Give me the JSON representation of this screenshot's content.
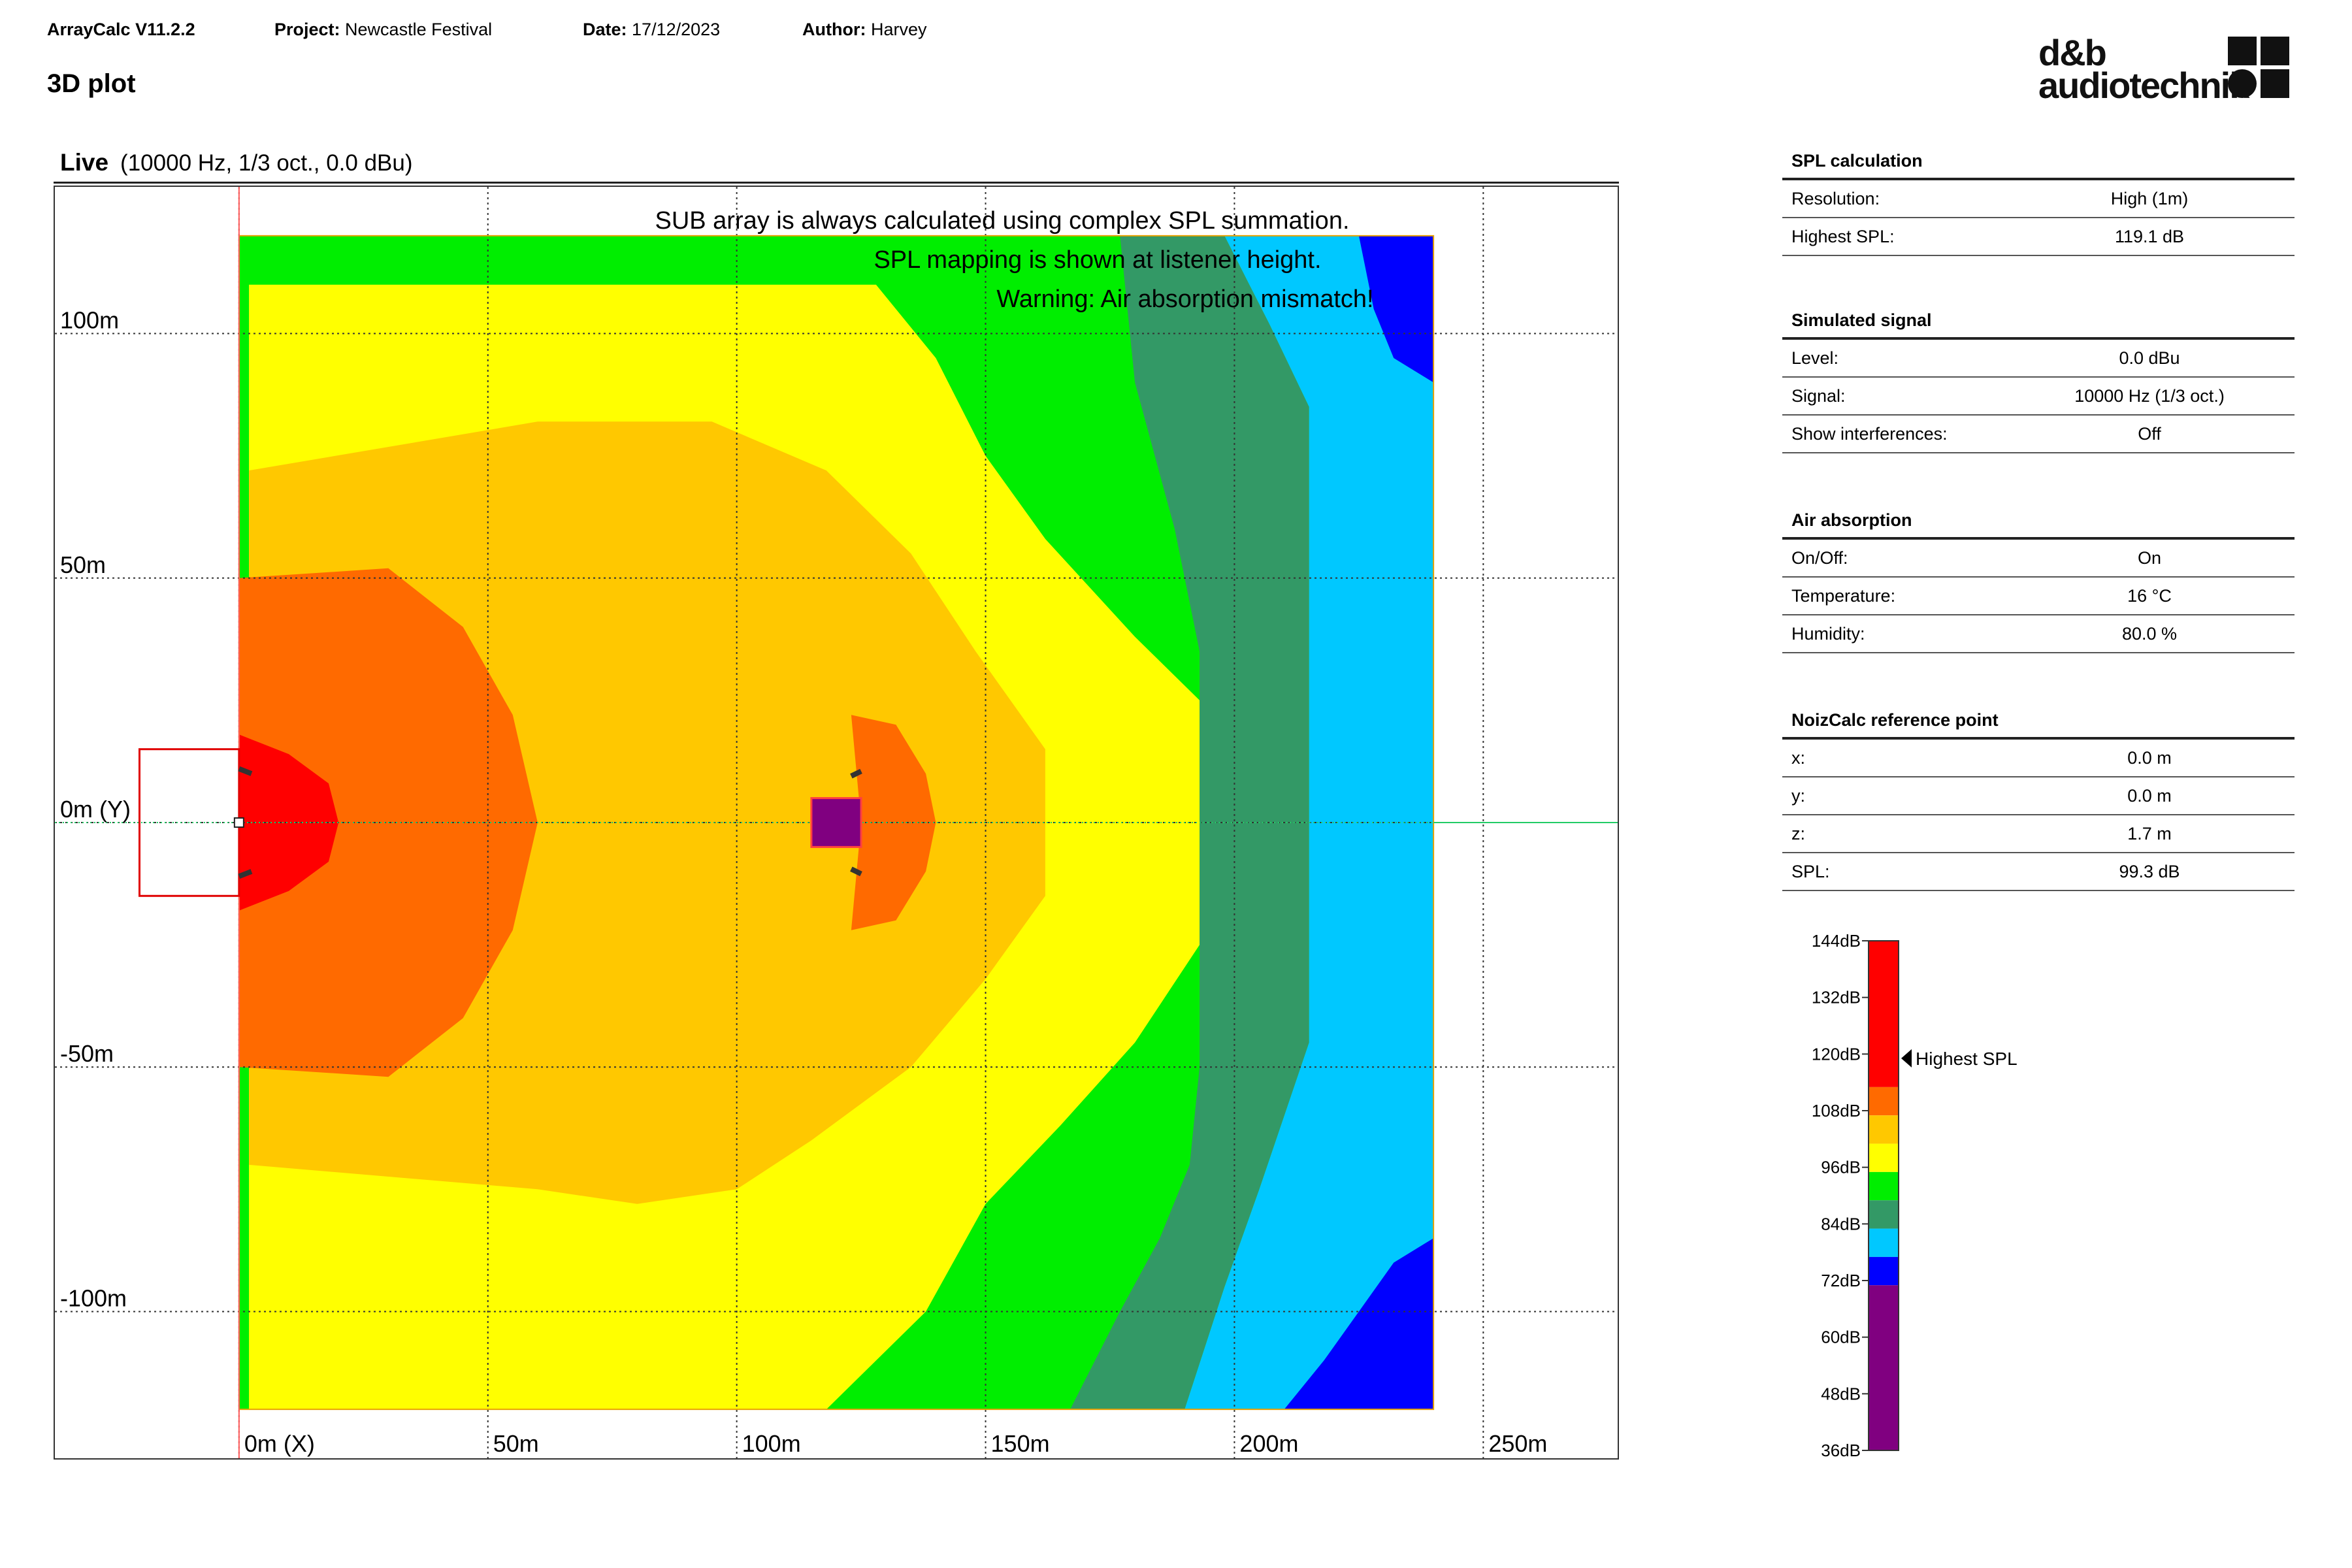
{
  "header": {
    "app": "ArrayCalc V11.2.2",
    "project_label": "Project:",
    "project": "Newcastle Festival",
    "date_label": "Date:",
    "date": "17/12/2023",
    "author_label": "Author:",
    "author": "Harvey"
  },
  "page_title": "3D plot",
  "view": {
    "mode": "Live",
    "params": "(10000 Hz, 1/3 oct., 0.0 dBu)"
  },
  "logo": {
    "line1": "d&b",
    "line2": "audiotechnik"
  },
  "messages": [
    "SUB array is always calculated using complex SPL summation.",
    "SPL mapping is shown at listener height.",
    "Warning: Air absorption mismatch!"
  ],
  "panels": {
    "spl": {
      "title": "SPL calculation",
      "rows": [
        {
          "label": "Resolution:",
          "value": "High (1m)"
        },
        {
          "label": "Highest SPL:",
          "value": "119.1 dB"
        }
      ]
    },
    "signal": {
      "title": "Simulated signal",
      "rows": [
        {
          "label": "Level:",
          "value": "0.0 dBu"
        },
        {
          "label": "Signal:",
          "value": "10000 Hz (1/3 oct.)"
        },
        {
          "label": "Show interferences:",
          "value": "Off"
        }
      ]
    },
    "air": {
      "title": "Air absorption",
      "rows": [
        {
          "label": "On/Off:",
          "value": "On"
        },
        {
          "label": "Temperature:",
          "value": "16 °C"
        },
        {
          "label": "Humidity:",
          "value": "80.0 %"
        }
      ]
    },
    "noiz": {
      "title": "NoizCalc reference point",
      "rows": [
        {
          "label": "x:",
          "value": "0.0 m"
        },
        {
          "label": "y:",
          "value": "0.0 m"
        },
        {
          "label": "z:",
          "value": "1.7 m"
        },
        {
          "label": "SPL:",
          "value": "99.3 dB"
        }
      ]
    }
  },
  "chart_data": {
    "type": "heatmap",
    "x_ticks": [
      {
        "value": 0,
        "label": "0m (X)"
      },
      {
        "value": 50,
        "label": "50m"
      },
      {
        "value": 100,
        "label": "100m"
      },
      {
        "value": 150,
        "label": "150m"
      },
      {
        "value": 200,
        "label": "200m"
      },
      {
        "value": 250,
        "label": "250m"
      }
    ],
    "y_ticks": [
      {
        "value": 100,
        "label": "100m"
      },
      {
        "value": 50,
        "label": "50m"
      },
      {
        "value": 0,
        "label": "0m (Y)"
      },
      {
        "value": -50,
        "label": "-50m"
      },
      {
        "value": -100,
        "label": "-100m"
      }
    ],
    "xlim": [
      -37,
      277
    ],
    "ylim": [
      -130,
      130
    ],
    "map_extent": {
      "x": [
        0,
        240
      ],
      "y": [
        -120,
        120
      ]
    },
    "grid": true,
    "legend_title": "",
    "highest_spl_label": "Highest SPL",
    "highest_spl_db": 119.1,
    "scale": {
      "min_db": 36,
      "max_db": 144,
      "tick_labels": [
        "144dB",
        "132dB",
        "120dB",
        "108dB",
        "96dB",
        "84dB",
        "72dB",
        "60dB",
        "48dB",
        "36dB"
      ],
      "tick_values": [
        144,
        132,
        120,
        108,
        96,
        84,
        72,
        60,
        48,
        36
      ],
      "bands": [
        {
          "from": 113,
          "to": 144,
          "color": "#ff0000"
        },
        {
          "from": 107,
          "to": 113,
          "color": "#ff6a00"
        },
        {
          "from": 101,
          "to": 107,
          "color": "#ffc800"
        },
        {
          "from": 95,
          "to": 101,
          "color": "#ffff00"
        },
        {
          "from": 89,
          "to": 95,
          "color": "#00ee00"
        },
        {
          "from": 83,
          "to": 89,
          "color": "#339966"
        },
        {
          "from": 77,
          "to": 83,
          "color": "#00c8ff"
        },
        {
          "from": 71,
          "to": 77,
          "color": "#0000ff"
        },
        {
          "from": 36,
          "to": 71,
          "color": "#800080"
        }
      ]
    },
    "regions": [
      {
        "name": "green-zone",
        "color": "#00ee00",
        "polygon": [
          [
            0,
            120
          ],
          [
            240,
            120
          ],
          [
            240,
            -120
          ],
          [
            0,
            -120
          ]
        ]
      },
      {
        "name": "yellow-zone",
        "color": "#ffff00",
        "polygon": [
          [
            2,
            110
          ],
          [
            128,
            110
          ],
          [
            140,
            95
          ],
          [
            150,
            75
          ],
          [
            162,
            58
          ],
          [
            180,
            38
          ],
          [
            193,
            25
          ],
          [
            193,
            -25
          ],
          [
            180,
            -45
          ],
          [
            165,
            -62
          ],
          [
            150,
            -78
          ],
          [
            138,
            -100
          ],
          [
            118,
            -120
          ],
          [
            2,
            -120
          ]
        ]
      },
      {
        "name": "darkgreen-zone",
        "color": "#339966",
        "polygon": [
          [
            177,
            120
          ],
          [
            198,
            120
          ],
          [
            207,
            102
          ],
          [
            215,
            85
          ],
          [
            215,
            -45
          ],
          [
            205,
            -75
          ],
          [
            198,
            -95
          ],
          [
            190,
            -120
          ],
          [
            167,
            -120
          ],
          [
            177,
            -100
          ],
          [
            185,
            -85
          ],
          [
            191,
            -70
          ],
          [
            193,
            -50
          ],
          [
            193,
            35
          ],
          [
            188,
            60
          ],
          [
            180,
            90
          ]
        ]
      },
      {
        "name": "cyan-zone",
        "color": "#00c8ff",
        "polygon": [
          [
            198,
            120
          ],
          [
            236,
            120
          ],
          [
            240,
            110
          ],
          [
            240,
            -90
          ],
          [
            232,
            -100
          ],
          [
            220,
            -115
          ],
          [
            210,
            -120
          ],
          [
            190,
            -120
          ],
          [
            198,
            -95
          ],
          [
            205,
            -75
          ],
          [
            215,
            -45
          ],
          [
            215,
            85
          ],
          [
            207,
            102
          ]
        ]
      },
      {
        "name": "blue-zone-top",
        "color": "#0000ff",
        "polygon": [
          [
            225,
            120
          ],
          [
            240,
            120
          ],
          [
            240,
            90
          ],
          [
            232,
            95
          ],
          [
            228,
            105
          ]
        ]
      },
      {
        "name": "blue-zone-bottom",
        "color": "#0000ff",
        "polygon": [
          [
            210,
            -120
          ],
          [
            240,
            -120
          ],
          [
            240,
            -85
          ],
          [
            232,
            -90
          ],
          [
            225,
            -100
          ],
          [
            218,
            -110
          ]
        ]
      },
      {
        "name": "amber-zone",
        "color": "#ffc800",
        "polygon": [
          [
            2,
            72
          ],
          [
            60,
            82
          ],
          [
            95,
            82
          ],
          [
            118,
            72
          ],
          [
            135,
            55
          ],
          [
            148,
            35
          ],
          [
            162,
            15
          ],
          [
            162,
            -15
          ],
          [
            150,
            -32
          ],
          [
            135,
            -50
          ],
          [
            115,
            -65
          ],
          [
            100,
            -75
          ],
          [
            80,
            -78
          ],
          [
            60,
            -75
          ],
          [
            2,
            -70
          ]
        ]
      },
      {
        "name": "orange-zone-left",
        "color": "#ff6a00",
        "polygon": [
          [
            0,
            50
          ],
          [
            30,
            52
          ],
          [
            45,
            40
          ],
          [
            55,
            22
          ],
          [
            60,
            0
          ],
          [
            55,
            -22
          ],
          [
            45,
            -40
          ],
          [
            30,
            -52
          ],
          [
            0,
            -50
          ]
        ]
      },
      {
        "name": "orange-zone-center",
        "color": "#ff6a00",
        "polygon": [
          [
            123,
            22
          ],
          [
            132,
            20
          ],
          [
            138,
            10
          ],
          [
            140,
            0
          ],
          [
            138,
            -10
          ],
          [
            132,
            -20
          ],
          [
            123,
            -22
          ],
          [
            125,
            0
          ]
        ]
      },
      {
        "name": "red-zone",
        "color": "#ff0000",
        "polygon": [
          [
            0,
            18
          ],
          [
            10,
            14
          ],
          [
            18,
            8
          ],
          [
            20,
            0
          ],
          [
            18,
            -8
          ],
          [
            10,
            -14
          ],
          [
            0,
            -18
          ]
        ]
      }
    ],
    "sources": [
      {
        "name": "main-array",
        "x": 0,
        "y": 0
      },
      {
        "name": "delay-tower",
        "x": 120,
        "y": 0
      }
    ]
  }
}
